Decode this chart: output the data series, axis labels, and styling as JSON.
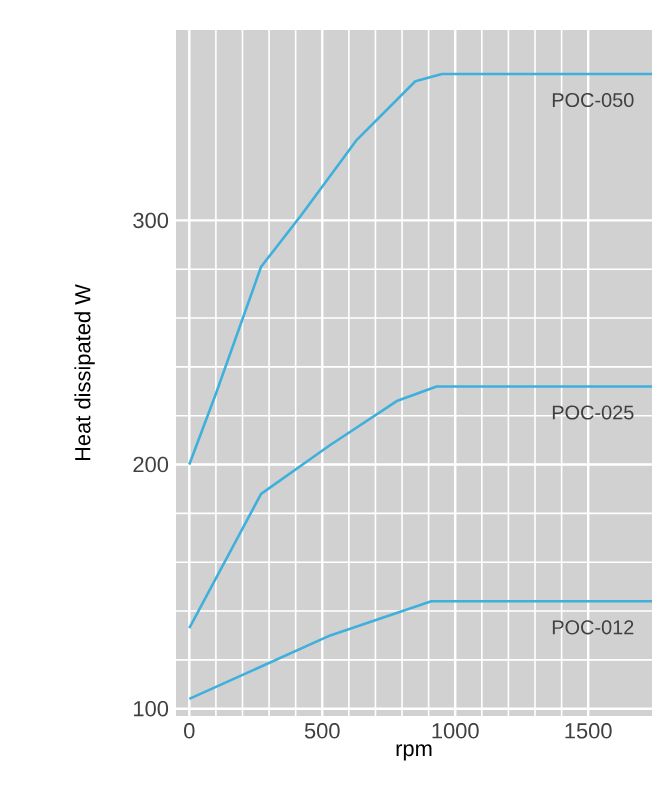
{
  "chart_data": {
    "type": "line",
    "xlabel": "rpm",
    "ylabel": "Heat dissipated W",
    "xlim": [
      -50,
      1740
    ],
    "ylim": [
      97,
      378
    ],
    "xticks": [
      0,
      500,
      1000,
      1500
    ],
    "yticks": [
      100,
      200,
      300
    ],
    "grid": true,
    "legend": false,
    "series": [
      {
        "name": "POC-050",
        "color": "#3fb0dc",
        "x": [
          0,
          100,
          270,
          420,
          630,
          850,
          950,
          1740
        ],
        "values": [
          200,
          229,
          281,
          302,
          333,
          357,
          360,
          360
        ]
      },
      {
        "name": "POC-025",
        "color": "#3fb0dc",
        "x": [
          0,
          270,
          530,
          780,
          930,
          1740
        ],
        "values": [
          133,
          188,
          208,
          226,
          232,
          232
        ]
      },
      {
        "name": "POC-012",
        "color": "#3fb0dc",
        "x": [
          0,
          530,
          910,
          1740
        ],
        "values": [
          104,
          130,
          144,
          144
        ]
      }
    ]
  }
}
